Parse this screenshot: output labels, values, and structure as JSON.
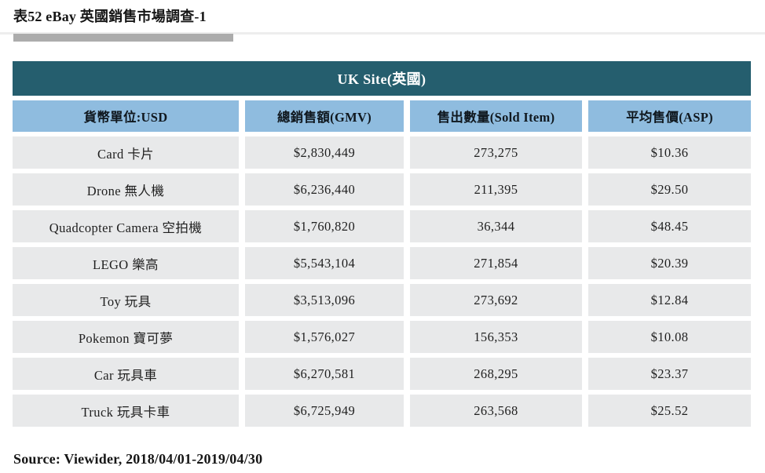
{
  "page": {
    "title": "表52 eBay 英國銷售市場調查-1",
    "source": "Source: Viewider, 2018/04/01-2019/04/30"
  },
  "table": {
    "banner": "UK Site(英國)",
    "columns": [
      "貨幣單位:USD",
      "總銷售額(GMV)",
      "售出數量(Sold Item)",
      "平均售價(ASP)"
    ],
    "rows": [
      {
        "category": "Card 卡片",
        "gmv": "$2,830,449",
        "sold_items": "273,275",
        "asp": "$10.36"
      },
      {
        "category": "Drone 無人機",
        "gmv": "$6,236,440",
        "sold_items": "211,395",
        "asp": "$29.50"
      },
      {
        "category": "Quadcopter Camera 空拍機",
        "gmv": "$1,760,820",
        "sold_items": "36,344",
        "asp": "$48.45"
      },
      {
        "category": "LEGO 樂高",
        "gmv": "$5,543,104",
        "sold_items": "271,854",
        "asp": "$20.39"
      },
      {
        "category": "Toy 玩具",
        "gmv": "$3,513,096",
        "sold_items": "273,692",
        "asp": "$12.84"
      },
      {
        "category": "Pokemon 寶可夢",
        "gmv": "$1,576,027",
        "sold_items": "156,353",
        "asp": "$10.08"
      },
      {
        "category": "Car 玩具車",
        "gmv": "$6,270,581",
        "sold_items": "268,295",
        "asp": "$23.37"
      },
      {
        "category": "Truck 玩具卡車",
        "gmv": "$6,725,949",
        "sold_items": "263,568",
        "asp": "$25.52"
      }
    ]
  },
  "colors": {
    "banner-teal": "#255E6E",
    "header-blue": "#8FBCDF",
    "row-gray": "#E8E9EA",
    "divider-dark": "#ACACAC",
    "divider-light": "#EDEDED"
  }
}
